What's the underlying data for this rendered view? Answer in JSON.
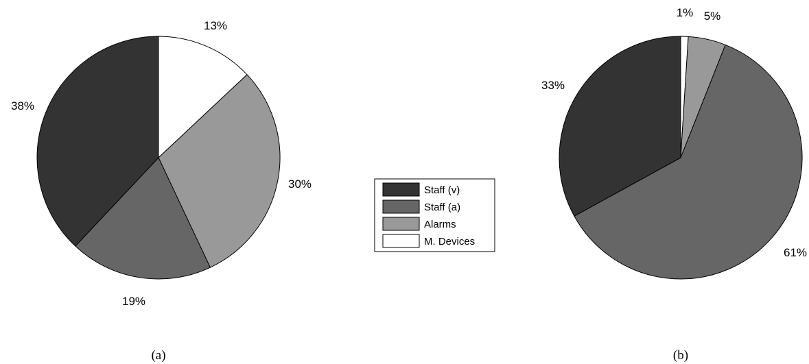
{
  "legend": [
    {
      "label": "Staff (v)",
      "color": "#333333"
    },
    {
      "label": "Staff (a)",
      "color": "#666666"
    },
    {
      "label": "Alarms",
      "color": "#999999"
    },
    {
      "label": "M. Devices",
      "color": "#ffffff"
    }
  ],
  "chart_data": [
    {
      "type": "pie",
      "caption": "(a)",
      "categories": [
        "Staff (v)",
        "Staff (a)",
        "Alarms",
        "M. Devices"
      ],
      "values": [
        38,
        19,
        30,
        13
      ],
      "labels": [
        "38%",
        "19%",
        "30%",
        "13%"
      ],
      "legend_position": "center"
    },
    {
      "type": "pie",
      "caption": "(b)",
      "categories": [
        "Staff (v)",
        "Staff (a)",
        "Alarms",
        "M. Devices"
      ],
      "values": [
        33,
        61,
        5,
        1
      ],
      "labels": [
        "33%",
        "61%",
        "5%",
        "1%"
      ],
      "legend_position": "center"
    }
  ]
}
